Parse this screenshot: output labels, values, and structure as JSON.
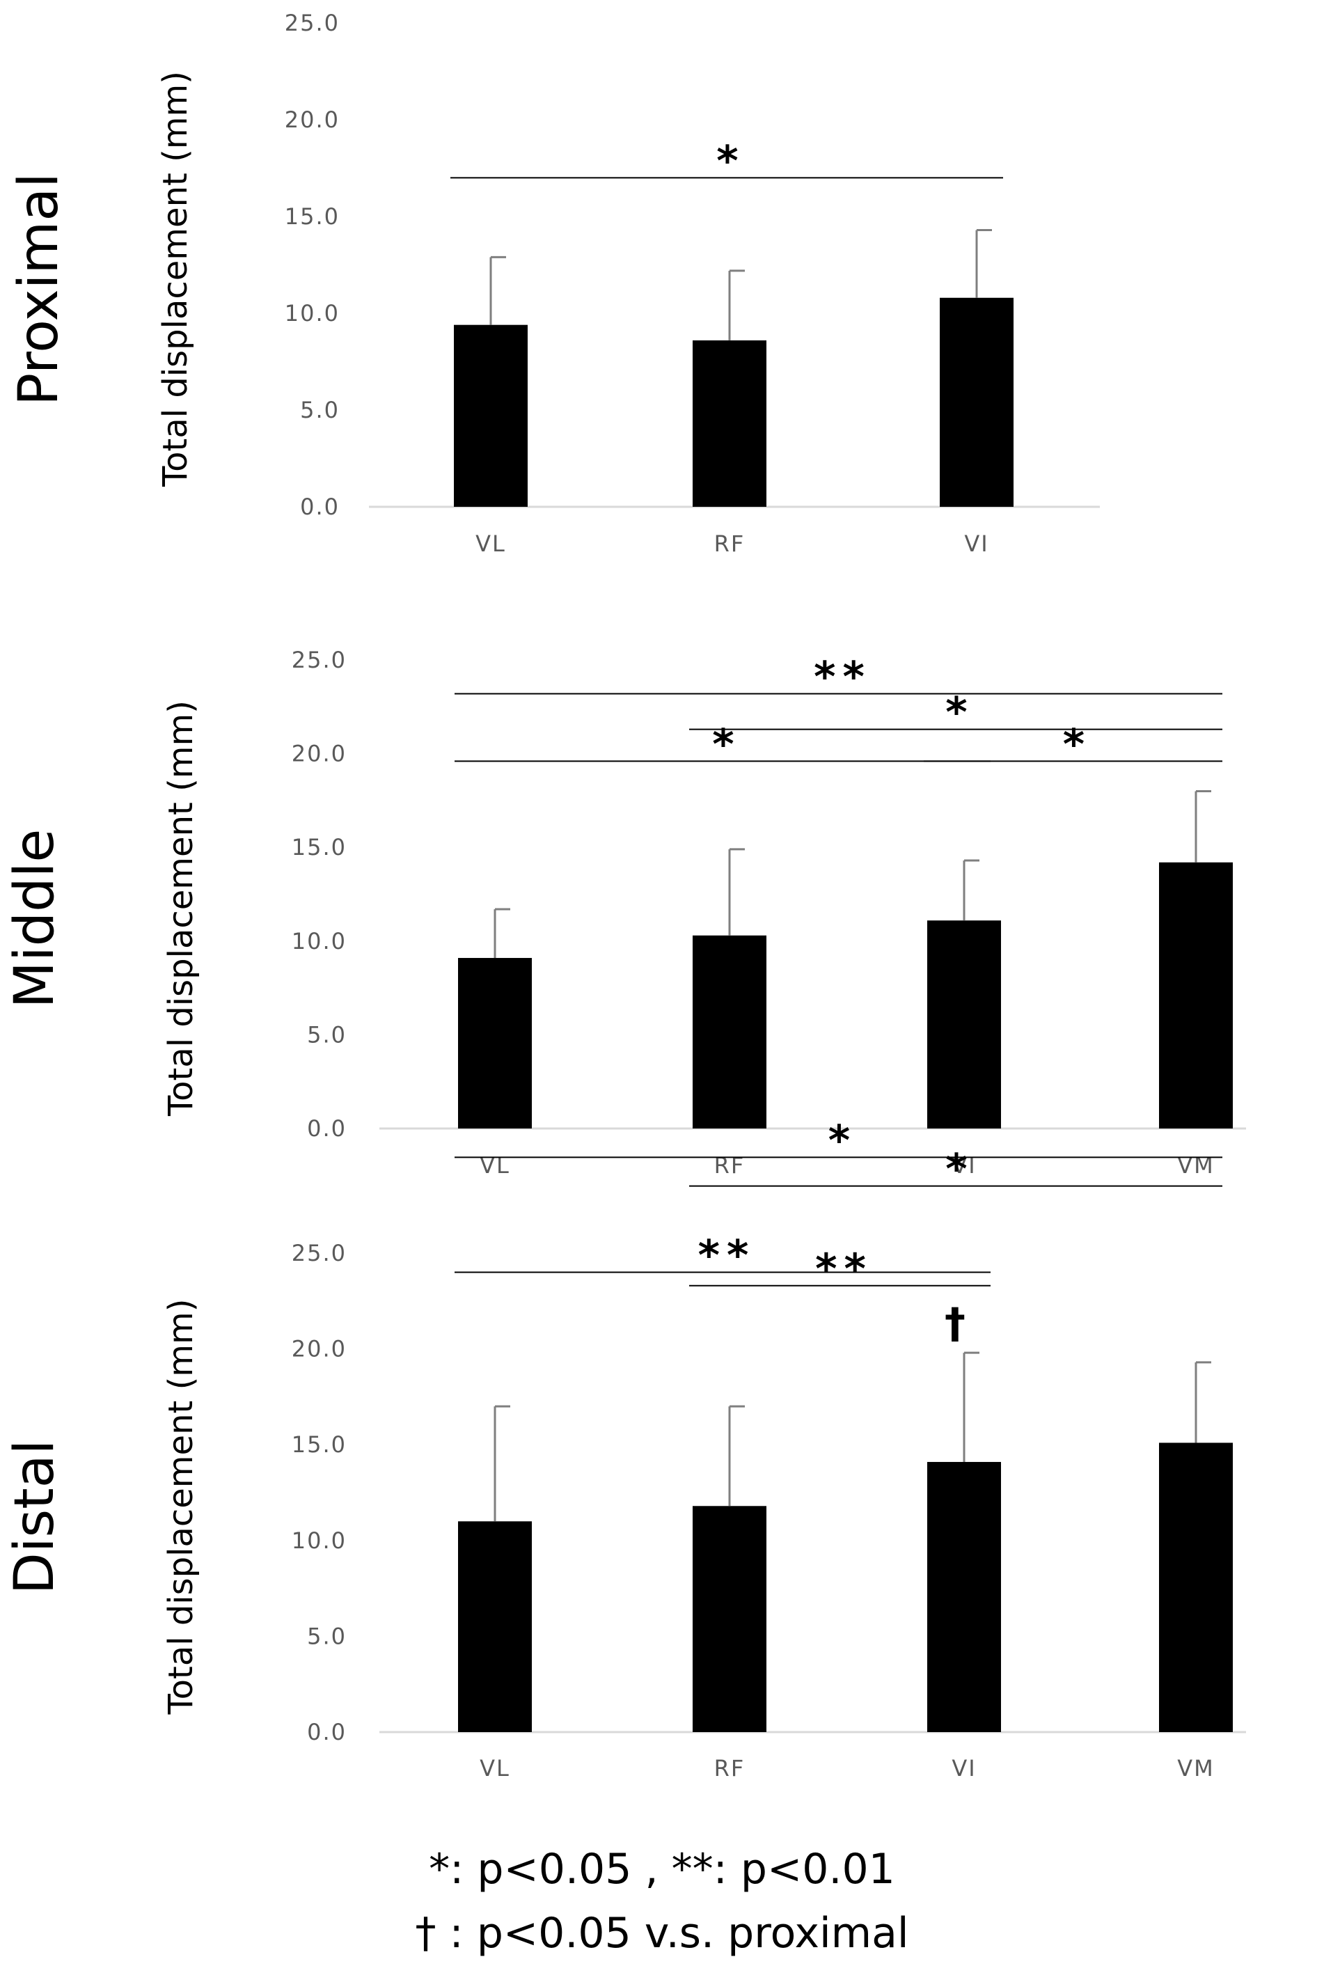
{
  "chart_data": [
    {
      "type": "bar",
      "panel_label": "Proximal",
      "ylabel": "Total displacement (mm)",
      "ylim": [
        0,
        25
      ],
      "yticks": [
        "0.0",
        "5.0",
        "10.0",
        "15.0",
        "20.0",
        "25.0"
      ],
      "categories": [
        "VL",
        "RF",
        "VI"
      ],
      "values": [
        9.4,
        8.6,
        10.8
      ],
      "errors": [
        3.5,
        3.6,
        3.5
      ],
      "annotations": [
        {
          "from": "VL",
          "to": "VI",
          "level": 17.0,
          "label": "*"
        }
      ]
    },
    {
      "type": "bar",
      "panel_label": "Middle",
      "ylabel": "Total displacement (mm)",
      "ylim": [
        0,
        25
      ],
      "yticks": [
        "0.0",
        "5.0",
        "10.0",
        "15.0",
        "20.0",
        "25.0"
      ],
      "categories": [
        "VL",
        "RF",
        "VI",
        "VM"
      ],
      "values": [
        9.1,
        10.3,
        11.1,
        14.2
      ],
      "errors": [
        2.6,
        4.6,
        3.2,
        3.8
      ],
      "annotations": [
        {
          "from": "VL",
          "to": "VM",
          "level": 23.2,
          "label": "**"
        },
        {
          "from": "RF",
          "to": "VM",
          "level": 21.3,
          "label": "*"
        },
        {
          "from": "VL",
          "to": "VI",
          "level": 19.6,
          "label": "*"
        },
        {
          "from": "VI",
          "to": "VM",
          "level": 19.6,
          "label": "*"
        }
      ]
    },
    {
      "type": "bar",
      "panel_label": "Distal",
      "ylabel": "Total displacement (mm)",
      "ylim": [
        0,
        25
      ],
      "yticks": [
        "0.0",
        "5.0",
        "10.0",
        "15.0",
        "20.0",
        "25.0"
      ],
      "categories": [
        "VL",
        "RF",
        "VI",
        "VM"
      ],
      "values": [
        11.0,
        11.8,
        14.1,
        15.1
      ],
      "errors": [
        6.0,
        5.2,
        5.7,
        4.2
      ],
      "marker": {
        "category": "VI",
        "label": "†"
      },
      "annotations": [
        {
          "from": "VL",
          "to": "VM",
          "level": 30.0,
          "label": "*"
        },
        {
          "from": "RF",
          "to": "VM",
          "level": 28.5,
          "label": "*"
        },
        {
          "from": "VL",
          "to": "VI",
          "level": 24.0,
          "label": "**"
        },
        {
          "from": "RF",
          "to": "VI",
          "level": 23.3,
          "label": "**"
        }
      ]
    }
  ],
  "legend": {
    "line1": "*: p<0.05 ,  **: p<0.01",
    "line2": "† : p<0.05 v.s. proximal"
  }
}
